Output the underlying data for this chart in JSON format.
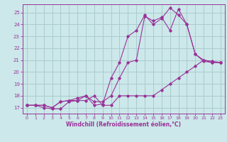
{
  "bg_color": "#cce8ea",
  "grid_color": "#aacccc",
  "line_color": "#993399",
  "marker_color": "#993399",
  "xlabel": "Windchill (Refroidissement éolien,°C)",
  "xlabel_color": "#993399",
  "tick_color": "#993399",
  "ylim": [
    16.5,
    25.7
  ],
  "xlim": [
    -0.5,
    23.5
  ],
  "yticks": [
    17,
    18,
    19,
    20,
    21,
    22,
    23,
    24,
    25
  ],
  "xticks": [
    0,
    1,
    2,
    3,
    4,
    5,
    6,
    7,
    8,
    9,
    10,
    11,
    12,
    13,
    14,
    15,
    16,
    17,
    18,
    19,
    20,
    21,
    22,
    23
  ],
  "series1_x": [
    0,
    1,
    2,
    3,
    4,
    5,
    6,
    7,
    8,
    9,
    10,
    11,
    12,
    13,
    14,
    15,
    16,
    17,
    18,
    19,
    20,
    21,
    22,
    23
  ],
  "series1_y": [
    17.2,
    17.2,
    17.0,
    16.9,
    16.9,
    17.5,
    17.6,
    17.6,
    18.0,
    17.2,
    17.2,
    18.0,
    18.0,
    18.0,
    18.0,
    18.0,
    18.5,
    19.0,
    19.5,
    20.0,
    20.5,
    21.0,
    20.8,
    20.8
  ],
  "series2_x": [
    0,
    1,
    2,
    3,
    4,
    5,
    6,
    7,
    8,
    9,
    10,
    11,
    12,
    13,
    14,
    15,
    16,
    17,
    18,
    19,
    20,
    21,
    22,
    23
  ],
  "series2_y": [
    17.2,
    17.2,
    17.2,
    17.0,
    17.5,
    17.6,
    17.6,
    18.0,
    17.5,
    17.5,
    18.0,
    19.5,
    20.8,
    21.0,
    24.7,
    24.3,
    24.6,
    23.5,
    25.3,
    24.0,
    21.5,
    21.0,
    20.9,
    20.8
  ],
  "series3_x": [
    0,
    1,
    2,
    3,
    4,
    5,
    6,
    7,
    8,
    9,
    10,
    11,
    12,
    13,
    14,
    15,
    16,
    17,
    18,
    19,
    20,
    21,
    22,
    23
  ],
  "series3_y": [
    17.2,
    17.2,
    17.2,
    17.0,
    17.5,
    17.6,
    17.8,
    18.0,
    17.2,
    17.3,
    19.5,
    20.8,
    23.0,
    23.5,
    24.8,
    24.0,
    24.5,
    25.4,
    24.8,
    24.0,
    21.5,
    20.9,
    20.8,
    20.8
  ]
}
